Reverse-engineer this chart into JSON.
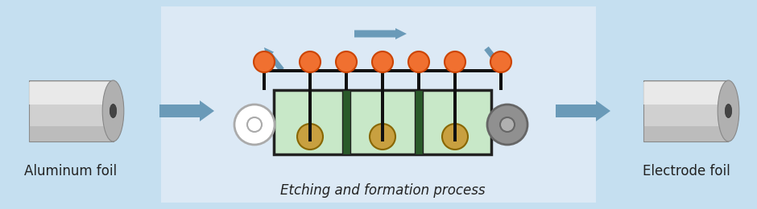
{
  "bg_outer": "#c5dff0",
  "bg_center": "#dce9f5",
  "arrow_color": "#6a9ab8",
  "tank_fill": "#c8e8c8",
  "tank_border": "#222222",
  "roller_top_color": "#f07030",
  "roller_top_edge": "#cc4400",
  "roller_bottom_color": "#c8a040",
  "roller_bottom_edge": "#886600",
  "separator_color": "#2a5a2a",
  "foil_color": "#111111",
  "label_aluminum": "Aluminum foil",
  "label_electrode": "Electrode foil",
  "label_process": "Etching and formation process",
  "font_size_label": 12,
  "cyl_body": "#d0d0d0",
  "cyl_light": "#f5f5f5",
  "cyl_dark": "#999999",
  "cyl_face": "#b0b0b0",
  "cyl_hole": "#444444",
  "wheel_left_fill": "#ffffff",
  "wheel_left_edge": "#aaaaaa",
  "wheel_right_fill": "#909090",
  "wheel_right_edge": "#666666"
}
